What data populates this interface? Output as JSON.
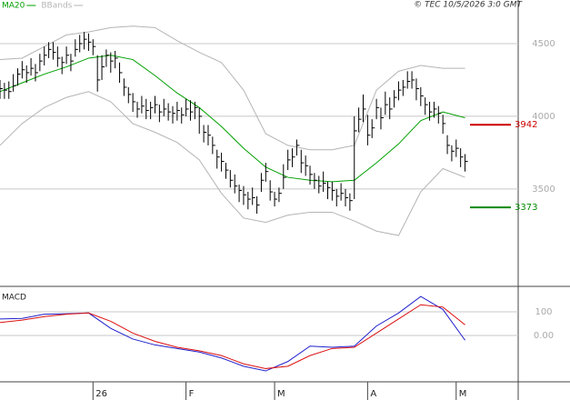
{
  "chart_data": [
    {
      "type": "ohlc",
      "source": "© TEC 10/5/2026 3:0 GMT",
      "xlim": [
        0,
        117
      ],
      "ylim": [
        2830,
        4800
      ],
      "yticks": [
        3500,
        4000,
        4500
      ],
      "grid": true,
      "bar_color": "#000000",
      "x": [
        0,
        1,
        2,
        3,
        4,
        5,
        6,
        7,
        8,
        9,
        10,
        11,
        12,
        13,
        14,
        15,
        16,
        17,
        18,
        19,
        20,
        21,
        22,
        23,
        24,
        25,
        26,
        27,
        28,
        29,
        30,
        31,
        32,
        33,
        34,
        35,
        36,
        37,
        38,
        39,
        40,
        41,
        42,
        43,
        44,
        45,
        46,
        47,
        48,
        49,
        50,
        51,
        52,
        53,
        54,
        55,
        56,
        57,
        58,
        59,
        60,
        61,
        62,
        63,
        64,
        65,
        66,
        67,
        68,
        69,
        70,
        71,
        72,
        73,
        74,
        75,
        76,
        77,
        78,
        79,
        80,
        81,
        82,
        83,
        84,
        85,
        86,
        87,
        88,
        89,
        90,
        91,
        92,
        93,
        94,
        95,
        96,
        97,
        98,
        99,
        100,
        101,
        102,
        103,
        104,
        105
      ],
      "high": [
        4250,
        4230,
        4240,
        4290,
        4330,
        4380,
        4350,
        4400,
        4360,
        4430,
        4480,
        4510,
        4510,
        4480,
        4410,
        4480,
        4430,
        4530,
        4560,
        4580,
        4570,
        4530,
        4420,
        4420,
        4460,
        4440,
        4450,
        4370,
        4260,
        4200,
        4160,
        4100,
        4140,
        4120,
        4100,
        4140,
        4080,
        4120,
        4090,
        4070,
        4100,
        4060,
        4120,
        4110,
        4100,
        4060,
        3940,
        3940,
        3860,
        3770,
        3750,
        3680,
        3630,
        3600,
        3530,
        3520,
        3480,
        3510,
        3450,
        3610,
        3680,
        3560,
        3480,
        3510,
        3670,
        3770,
        3780,
        3840,
        3770,
        3730,
        3660,
        3610,
        3590,
        3620,
        3550,
        3550,
        3500,
        3540,
        3500,
        3470,
        4000,
        4060,
        4150,
        4010,
        3980,
        4120,
        4060,
        4170,
        4130,
        4180,
        4240,
        4250,
        4310,
        4310,
        4260,
        4200,
        4130,
        4100,
        4100,
        4070,
        4010,
        3870,
        3800,
        3840,
        3780,
        3740
      ],
      "low": [
        4120,
        4120,
        4120,
        4170,
        4210,
        4260,
        4230,
        4280,
        4240,
        4310,
        4350,
        4400,
        4390,
        4340,
        4290,
        4360,
        4310,
        4410,
        4440,
        4460,
        4450,
        4420,
        4170,
        4250,
        4340,
        4300,
        4330,
        4230,
        4140,
        4090,
        4030,
        3990,
        4020,
        3980,
        3980,
        4020,
        3960,
        4000,
        3970,
        3950,
        3970,
        3950,
        4000,
        3970,
        3980,
        3880,
        3820,
        3800,
        3740,
        3640,
        3620,
        3570,
        3510,
        3470,
        3410,
        3390,
        3360,
        3390,
        3330,
        3480,
        3550,
        3420,
        3380,
        3410,
        3500,
        3630,
        3650,
        3730,
        3610,
        3590,
        3530,
        3500,
        3470,
        3480,
        3430,
        3420,
        3380,
        3420,
        3380,
        3350,
        3430,
        3890,
        3960,
        3800,
        3850,
        3980,
        3910,
        4010,
        3980,
        4060,
        4110,
        4140,
        4190,
        4190,
        4110,
        4070,
        4010,
        3970,
        3990,
        3950,
        3880,
        3740,
        3690,
        3720,
        3650,
        3620
      ],
      "close": [
        4190,
        4180,
        4170,
        4210,
        4290,
        4320,
        4300,
        4330,
        4300,
        4380,
        4420,
        4460,
        4440,
        4400,
        4370,
        4420,
        4380,
        4460,
        4500,
        4530,
        4510,
        4480,
        4250,
        4340,
        4420,
        4380,
        4400,
        4300,
        4200,
        4150,
        4100,
        4050,
        4070,
        4040,
        4060,
        4080,
        4030,
        4050,
        4030,
        4020,
        4040,
        4010,
        4050,
        4030,
        4060,
        4000,
        3890,
        3870,
        3800,
        3720,
        3690,
        3630,
        3560,
        3520,
        3490,
        3460,
        3430,
        3440,
        3390,
        3560,
        3620,
        3480,
        3430,
        3470,
        3580,
        3700,
        3720,
        3800,
        3680,
        3660,
        3600,
        3560,
        3520,
        3540,
        3510,
        3490,
        3450,
        3470,
        3440,
        3420,
        3900,
        3980,
        4050,
        3870,
        3920,
        4060,
        3990,
        4080,
        4050,
        4130,
        4180,
        4200,
        4240,
        4250,
        4190,
        4140,
        4080,
        4030,
        4050,
        4020,
        3950,
        3800,
        3760,
        3780,
        3720,
        3690
      ],
      "series": [
        {
          "name": "MA20",
          "color": "#00a000",
          "x": [
            0,
            5,
            10,
            15,
            20,
            25,
            30,
            35,
            40,
            45,
            50,
            55,
            60,
            65,
            70,
            75,
            80,
            85,
            90,
            95,
            100,
            105
          ],
          "values": [
            4170,
            4230,
            4290,
            4340,
            4400,
            4420,
            4390,
            4280,
            4160,
            4060,
            3930,
            3780,
            3650,
            3580,
            3560,
            3550,
            3560,
            3680,
            3810,
            3970,
            4030,
            3990
          ]
        },
        {
          "name": "BBands",
          "color": "#b4b4b4",
          "x": [
            0,
            5,
            10,
            15,
            20,
            25,
            30,
            35,
            40,
            45,
            50,
            55,
            60,
            65,
            70,
            75,
            80,
            85,
            90,
            95,
            100,
            105
          ],
          "upper": [
            4390,
            4400,
            4480,
            4560,
            4580,
            4610,
            4620,
            4610,
            4520,
            4440,
            4370,
            4180,
            3880,
            3800,
            3770,
            3770,
            3800,
            4180,
            4310,
            4350,
            4330,
            4330
          ],
          "lower": [
            3800,
            3950,
            4060,
            4130,
            4170,
            4100,
            3950,
            3890,
            3820,
            3700,
            3470,
            3300,
            3270,
            3320,
            3340,
            3340,
            3280,
            3210,
            3180,
            3480,
            3640,
            3580
          ]
        }
      ],
      "levels": [
        {
          "value": 3942,
          "color": "#cc0000"
        },
        {
          "value": 3373,
          "color": "#008a00"
        }
      ]
    },
    {
      "type": "line",
      "title": "MACD",
      "xlim": [
        0,
        117
      ],
      "ylim": [
        -196,
        200
      ],
      "yticks": [
        100,
        {
          "value": 0,
          "label": "0.00"
        }
      ],
      "grid": true,
      "xticks": [
        {
          "value": 21,
          "label": "26"
        },
        {
          "value": 42,
          "label": "F"
        },
        {
          "value": 62,
          "label": "M"
        },
        {
          "value": 83,
          "label": "A"
        },
        {
          "value": 103,
          "label": "M"
        }
      ],
      "lines": [
        {
          "color": "#2020cc",
          "x": [
            0,
            5,
            10,
            15,
            20,
            25,
            30,
            35,
            40,
            45,
            50,
            55,
            60,
            65,
            70,
            75,
            80,
            85,
            90,
            95,
            100,
            105
          ],
          "values": [
            70,
            72,
            90,
            92,
            95,
            30,
            -15,
            -40,
            -55,
            -70,
            -95,
            -130,
            -150,
            -110,
            -45,
            -50,
            -45,
            40,
            95,
            165,
            110,
            -20
          ]
        },
        {
          "color": "#dd1010",
          "x": [
            0,
            5,
            10,
            15,
            20,
            25,
            30,
            35,
            40,
            45,
            50,
            55,
            60,
            65,
            70,
            75,
            80,
            85,
            90,
            95,
            100,
            105
          ],
          "values": [
            55,
            65,
            80,
            90,
            95,
            60,
            10,
            -25,
            -50,
            -65,
            -85,
            -120,
            -140,
            -130,
            -85,
            -55,
            -50,
            10,
            70,
            130,
            120,
            45
          ]
        }
      ]
    }
  ]
}
